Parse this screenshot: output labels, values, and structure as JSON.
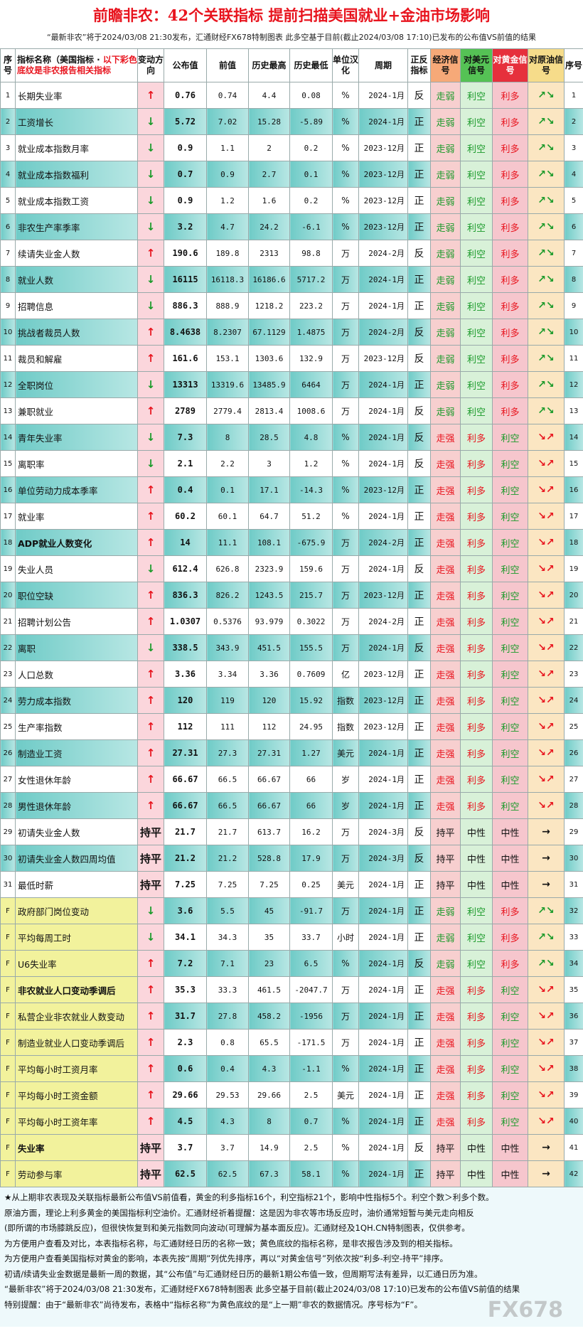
{
  "header": {
    "title": "前瞻非农：42个关联指标  提前扫描美国就业+金油市场影响",
    "subtitle": "“最新非农”将于2024/03/08 21:30发布，汇通财经FX678特制图表  此多空基于目前(截止2024/03/08 17:10)已发布的公布值VS前值的结果"
  },
  "table": {
    "columns": [
      "序号",
      {
        "label": "指标名称（美国指标 · ",
        "note": "以下彩色底纹是非农报告相关指标"
      },
      "变动方向",
      "公布值",
      "前值",
      "历史最高",
      "历史最低",
      "单位汉化",
      "周期",
      "正反指标",
      "经济信号",
      "对美元信号",
      "对黄金信号",
      "对原油信号",
      "序号"
    ],
    "text_colors": {
      "↑": "#e8141e",
      "↓": "#1a9a2a",
      "走弱": "#1a9a2a",
      "走强": "#e8141e",
      "利空": "#1a9a2a",
      "利多": "#e8141e",
      "↗↘": "#1a9a2a",
      "↘↗": "#e8141e"
    },
    "rows": [
      {
        "cells": [
          "1",
          "长期失业率",
          "↑",
          "0.76",
          "0.74",
          "4.4",
          "0.08",
          "%",
          "2024-1月",
          "反",
          "走弱",
          "利空",
          "利多",
          "↗↘",
          "1"
        ]
      },
      {
        "cells": [
          "2",
          "工资增长",
          "↓",
          "5.72",
          "7.02",
          "15.28",
          "-5.89",
          "%",
          "2024-1月",
          "正",
          "走弱",
          "利空",
          "利多",
          "↗↘",
          "2"
        ]
      },
      {
        "cells": [
          "3",
          "就业成本指数月率",
          "↓",
          "0.9",
          "1.1",
          "2",
          "0.2",
          "%",
          "2023-12月",
          "正",
          "走弱",
          "利空",
          "利多",
          "↗↘",
          "3"
        ]
      },
      {
        "cells": [
          "4",
          "就业成本指数福利",
          "↓",
          "0.7",
          "0.9",
          "2.7",
          "0.1",
          "%",
          "2023-12月",
          "正",
          "走弱",
          "利空",
          "利多",
          "↗↘",
          "4"
        ]
      },
      {
        "cells": [
          "5",
          "就业成本指数工资",
          "↓",
          "0.9",
          "1.2",
          "1.6",
          "0.2",
          "%",
          "2023-12月",
          "正",
          "走弱",
          "利空",
          "利多",
          "↗↘",
          "5"
        ]
      },
      {
        "cells": [
          "6",
          "非农生产率季率",
          "↓",
          "3.2",
          "4.7",
          "24.2",
          "-6.1",
          "%",
          "2023-12月",
          "正",
          "走弱",
          "利空",
          "利多",
          "↗↘",
          "6"
        ]
      },
      {
        "cells": [
          "7",
          "续请失业金人数",
          "↑",
          "190.6",
          "189.8",
          "2313",
          "98.8",
          "万",
          "2024-2月",
          "反",
          "走弱",
          "利空",
          "利多",
          "↗↘",
          "7"
        ]
      },
      {
        "cells": [
          "8",
          "就业人数",
          "↓",
          "16115",
          "16118.3",
          "16186.6",
          "5717.2",
          "万",
          "2024-1月",
          "正",
          "走弱",
          "利空",
          "利多",
          "↗↘",
          "8"
        ]
      },
      {
        "cells": [
          "9",
          "招聘信息",
          "↓",
          "886.3",
          "888.9",
          "1218.2",
          "223.2",
          "万",
          "2024-1月",
          "正",
          "走弱",
          "利空",
          "利多",
          "↗↘",
          "9"
        ]
      },
      {
        "cells": [
          "10",
          "挑战者裁员人数",
          "↑",
          "8.4638",
          "8.2307",
          "67.1129",
          "1.4875",
          "万",
          "2024-2月",
          "反",
          "走弱",
          "利空",
          "利多",
          "↗↘",
          "10"
        ]
      },
      {
        "cells": [
          "11",
          "裁员和解雇",
          "↑",
          "161.6",
          "153.1",
          "1303.6",
          "132.9",
          "万",
          "2023-12月",
          "反",
          "走弱",
          "利空",
          "利多",
          "↗↘",
          "11"
        ]
      },
      {
        "cells": [
          "12",
          "全职岗位",
          "↓",
          "13313",
          "13319.6",
          "13485.9",
          "6464",
          "万",
          "2024-1月",
          "正",
          "走弱",
          "利空",
          "利多",
          "↗↘",
          "12"
        ]
      },
      {
        "cells": [
          "13",
          "兼职就业",
          "↑",
          "2789",
          "2779.4",
          "2813.4",
          "1008.6",
          "万",
          "2024-1月",
          "反",
          "走弱",
          "利空",
          "利多",
          "↗↘",
          "13"
        ]
      },
      {
        "cells": [
          "14",
          "青年失业率",
          "↓",
          "7.3",
          "8",
          "28.5",
          "4.8",
          "%",
          "2024-1月",
          "反",
          "走强",
          "利多",
          "利空",
          "↘↗",
          "14"
        ]
      },
      {
        "cells": [
          "15",
          "离职率",
          "↓",
          "2.1",
          "2.2",
          "3",
          "1.2",
          "%",
          "2024-1月",
          "反",
          "走强",
          "利多",
          "利空",
          "↘↗",
          "15"
        ]
      },
      {
        "cells": [
          "16",
          "单位劳动力成本季率",
          "↑",
          "0.4",
          "0.1",
          "17.1",
          "-14.3",
          "%",
          "2023-12月",
          "正",
          "走强",
          "利多",
          "利空",
          "↘↗",
          "16"
        ]
      },
      {
        "cells": [
          "17",
          "就业率",
          "↑",
          "60.2",
          "60.1",
          "64.7",
          "51.2",
          "%",
          "2024-1月",
          "正",
          "走强",
          "利多",
          "利空",
          "↘↗",
          "17"
        ]
      },
      {
        "cells": [
          "18",
          "ADP就业人数变化",
          "↑",
          "14",
          "11.1",
          "108.1",
          "-675.9",
          "万",
          "2024-2月",
          "正",
          "走强",
          "利多",
          "利空",
          "↘↗",
          "18"
        ],
        "bold": true
      },
      {
        "cells": [
          "19",
          "失业人员",
          "↓",
          "612.4",
          "626.8",
          "2323.9",
          "159.6",
          "万",
          "2024-1月",
          "反",
          "走强",
          "利多",
          "利空",
          "↘↗",
          "19"
        ]
      },
      {
        "cells": [
          "20",
          "职位空缺",
          "↑",
          "836.3",
          "826.2",
          "1243.5",
          "215.7",
          "万",
          "2023-12月",
          "正",
          "走强",
          "利多",
          "利空",
          "↘↗",
          "20"
        ]
      },
      {
        "cells": [
          "21",
          "招聘计划公告",
          "↑",
          "1.0307",
          "0.5376",
          "93.979",
          "0.3022",
          "万",
          "2024-2月",
          "正",
          "走强",
          "利多",
          "利空",
          "↘↗",
          "21"
        ]
      },
      {
        "cells": [
          "22",
          "离职",
          "↓",
          "338.5",
          "343.9",
          "451.5",
          "155.5",
          "万",
          "2024-1月",
          "反",
          "走强",
          "利多",
          "利空",
          "↘↗",
          "22"
        ]
      },
      {
        "cells": [
          "23",
          "人口总数",
          "↑",
          "3.36",
          "3.34",
          "3.36",
          "0.7609",
          "亿",
          "2023-12月",
          "正",
          "走强",
          "利多",
          "利空",
          "↘↗",
          "23"
        ]
      },
      {
        "cells": [
          "24",
          "劳力成本指数",
          "↑",
          "120",
          "119",
          "120",
          "15.92",
          "指数",
          "2023-12月",
          "正",
          "走强",
          "利多",
          "利空",
          "↘↗",
          "24"
        ]
      },
      {
        "cells": [
          "25",
          "生产率指数",
          "↑",
          "112",
          "111",
          "112",
          "24.95",
          "指数",
          "2023-12月",
          "正",
          "走强",
          "利多",
          "利空",
          "↘↗",
          "25"
        ]
      },
      {
        "cells": [
          "26",
          "制造业工资",
          "↑",
          "27.31",
          "27.3",
          "27.31",
          "1.27",
          "美元",
          "2024-1月",
          "正",
          "走强",
          "利多",
          "利空",
          "↘↗",
          "26"
        ]
      },
      {
        "cells": [
          "27",
          "女性退休年龄",
          "↑",
          "66.67",
          "66.5",
          "66.67",
          "66",
          "岁",
          "2024-1月",
          "正",
          "走强",
          "利多",
          "利空",
          "↘↗",
          "27"
        ]
      },
      {
        "cells": [
          "28",
          "男性退休年龄",
          "↑",
          "66.67",
          "66.5",
          "66.67",
          "66",
          "岁",
          "2024-1月",
          "正",
          "走强",
          "利多",
          "利空",
          "↘↗",
          "28"
        ]
      },
      {
        "cells": [
          "29",
          "初请失业金人数",
          "持平",
          "21.7",
          "21.7",
          "613.7",
          "16.2",
          "万",
          "2024-3月",
          "反",
          "持平",
          "中性",
          "中性",
          "→",
          "29"
        ]
      },
      {
        "cells": [
          "30",
          "初请失业金人数四周均值",
          "持平",
          "21.2",
          "21.2",
          "528.8",
          "17.9",
          "万",
          "2024-3月",
          "反",
          "持平",
          "中性",
          "中性",
          "→",
          "30"
        ]
      },
      {
        "cells": [
          "31",
          "最低时薪",
          "持平",
          "7.25",
          "7.25",
          "7.25",
          "0.25",
          "美元",
          "2024-1月",
          "正",
          "持平",
          "中性",
          "中性",
          "→",
          "31"
        ]
      },
      {
        "cells": [
          "F",
          "政府部门岗位变动",
          "↓",
          "3.6",
          "5.5",
          "45",
          "-91.7",
          "万",
          "2024-1月",
          "正",
          "走弱",
          "利空",
          "利多",
          "↗↘",
          "32"
        ],
        "nonfarm": true
      },
      {
        "cells": [
          "F",
          "平均每周工时",
          "↓",
          "34.1",
          "34.3",
          "35",
          "33.7",
          "小时",
          "2024-1月",
          "正",
          "走弱",
          "利空",
          "利多",
          "↗↘",
          "33"
        ],
        "nonfarm": true
      },
      {
        "cells": [
          "F",
          "U6失业率",
          "↑",
          "7.2",
          "7.1",
          "23",
          "6.5",
          "%",
          "2024-1月",
          "反",
          "走弱",
          "利空",
          "利多",
          "↗↘",
          "34"
        ],
        "nonfarm": true
      },
      {
        "cells": [
          "F",
          "非农就业人口变动季调后",
          "↑",
          "35.3",
          "33.3",
          "461.5",
          "-2047.7",
          "万",
          "2024-1月",
          "正",
          "走强",
          "利多",
          "利空",
          "↘↗",
          "35"
        ],
        "nonfarm": true,
        "bold": true
      },
      {
        "cells": [
          "F",
          "私营企业非农就业人数变动",
          "↑",
          "31.7",
          "27.8",
          "458.2",
          "-1956",
          "万",
          "2024-1月",
          "正",
          "走强",
          "利多",
          "利空",
          "↘↗",
          "36"
        ],
        "nonfarm": true
      },
      {
        "cells": [
          "F",
          "制造业就业人口变动季调后",
          "↑",
          "2.3",
          "0.8",
          "65.5",
          "-171.5",
          "万",
          "2024-1月",
          "正",
          "走强",
          "利多",
          "利空",
          "↘↗",
          "37"
        ],
        "nonfarm": true
      },
      {
        "cells": [
          "F",
          "平均每小时工资月率",
          "↑",
          "0.6",
          "0.4",
          "4.3",
          "-1.1",
          "%",
          "2024-1月",
          "正",
          "走强",
          "利多",
          "利空",
          "↘↗",
          "38"
        ],
        "nonfarm": true
      },
      {
        "cells": [
          "F",
          "平均每小时工资金额",
          "↑",
          "29.66",
          "29.53",
          "29.66",
          "2.5",
          "美元",
          "2024-1月",
          "正",
          "走强",
          "利多",
          "利空",
          "↘↗",
          "39"
        ],
        "nonfarm": true
      },
      {
        "cells": [
          "F",
          "平均每小时工资年率",
          "↑",
          "4.5",
          "4.3",
          "8",
          "0.7",
          "%",
          "2024-1月",
          "正",
          "走强",
          "利多",
          "利空",
          "↘↗",
          "40"
        ],
        "nonfarm": true
      },
      {
        "cells": [
          "F",
          "失业率",
          "持平",
          "3.7",
          "3.7",
          "14.9",
          "2.5",
          "%",
          "2024-1月",
          "反",
          "持平",
          "中性",
          "中性",
          "→",
          "41"
        ],
        "nonfarm": true,
        "bold": true
      },
      {
        "cells": [
          "F",
          "劳动参与率",
          "持平",
          "62.5",
          "62.5",
          "67.3",
          "58.1",
          "%",
          "2024-1月",
          "正",
          "持平",
          "中性",
          "中性",
          "→",
          "42"
        ],
        "nonfarm": true
      }
    ]
  },
  "footer": {
    "lines": [
      "★从上期非农表现及关联指标最新公布值VS前值看，黄金的利多指标16个，利空指标21个，影响中性指标5个。利空个数＞利多个数。",
      "原油方面，理论上利多黄金的美国指标利空油价。汇通财经祈着提醒：这是因为非农等市场反应时，油价通常短暂与美元走向相反",
      "(即所谓的市场膝跳反应)，但很快恢复到和美元指数同向波动(可理解为基本面反应)。汇通财经及1QH.CN特制图表，仅供参考。",
      "为方便用户查看及对比，本表指标名称，与汇通财经日历的名称一致；黄色底纹的指标名称，是非农报告涉及到的相关指标。",
      "为方便用户查看美国指标对黄金的影响，本表先按“周期”列优先排序，再以“对黄金信号”列依次按“利多-利空-持平”排序。",
      "初请/续请失业金数据是最新一周的数据，其“公布值”与汇通财经日历的最新1期公布值一致，但周期写法有差异，以汇通日历为准。",
      "“最新非农”将于2024/03/08 21:30发布，汇通财经FX678特制图表  此多空基于目前(截止2024/03/08 17:10)已发布的公布值VS前值的结果",
      "特别提醒：由于“最新非农”尚待发布，表格中“指标名称”为黄色底纹的是“上一期”非农的数据情况。序号标为“F”。"
    ],
    "watermark": "FX678"
  }
}
